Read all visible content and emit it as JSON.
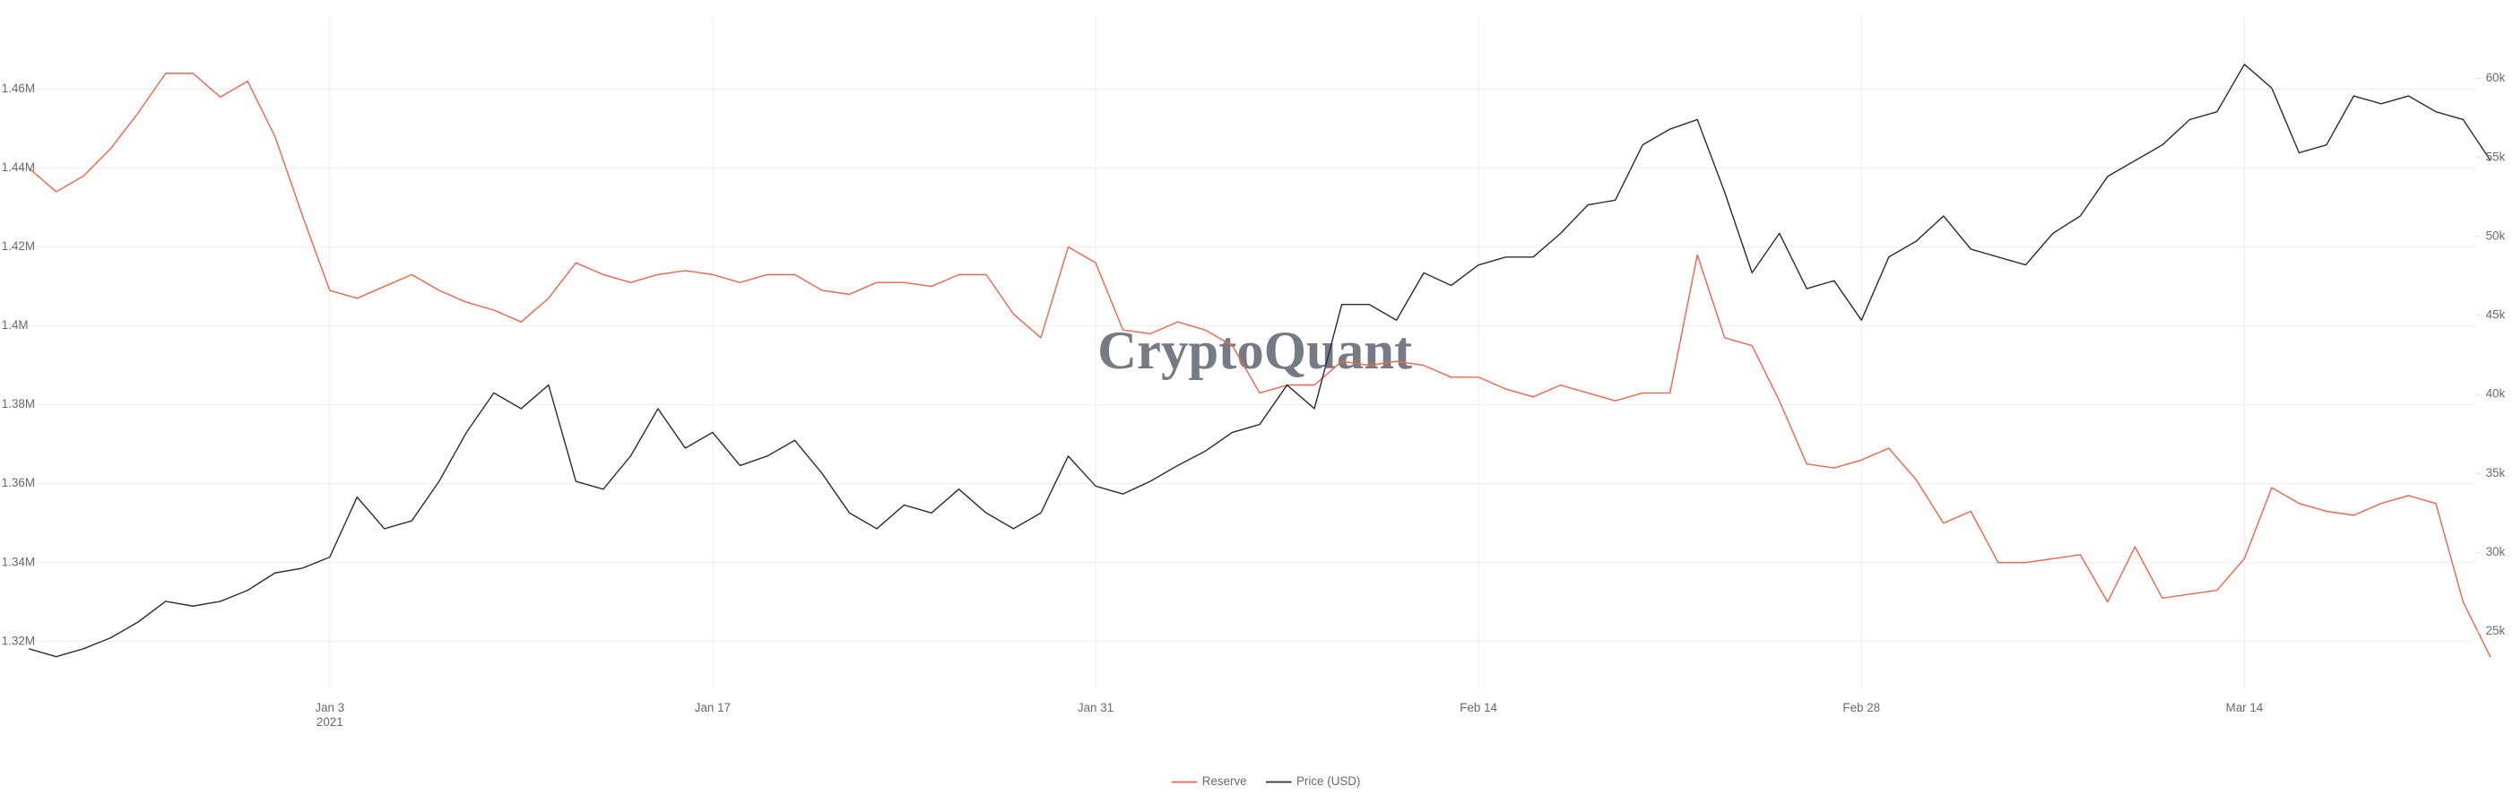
{
  "chart_data": {
    "type": "line",
    "watermark": "CryptoQuant",
    "x": [
      "2020-12-23",
      "2020-12-24",
      "2020-12-25",
      "2020-12-26",
      "2020-12-27",
      "2020-12-28",
      "2020-12-29",
      "2020-12-30",
      "2020-12-31",
      "2021-01-01",
      "2021-01-02",
      "2021-01-03",
      "2021-01-04",
      "2021-01-05",
      "2021-01-06",
      "2021-01-07",
      "2021-01-08",
      "2021-01-09",
      "2021-01-10",
      "2021-01-11",
      "2021-01-12",
      "2021-01-13",
      "2021-01-14",
      "2021-01-15",
      "2021-01-16",
      "2021-01-17",
      "2021-01-18",
      "2021-01-19",
      "2021-01-20",
      "2021-01-21",
      "2021-01-22",
      "2021-01-23",
      "2021-01-24",
      "2021-01-25",
      "2021-01-26",
      "2021-01-27",
      "2021-01-28",
      "2021-01-29",
      "2021-01-30",
      "2021-01-31",
      "2021-02-01",
      "2021-02-02",
      "2021-02-03",
      "2021-02-04",
      "2021-02-05",
      "2021-02-06",
      "2021-02-07",
      "2021-02-08",
      "2021-02-09",
      "2021-02-10",
      "2021-02-11",
      "2021-02-12",
      "2021-02-13",
      "2021-02-14",
      "2021-02-15",
      "2021-02-16",
      "2021-02-17",
      "2021-02-18",
      "2021-02-19",
      "2021-02-20",
      "2021-02-21",
      "2021-02-22",
      "2021-02-23",
      "2021-02-24",
      "2021-02-25",
      "2021-02-26",
      "2021-02-27",
      "2021-02-28",
      "2021-03-01",
      "2021-03-02",
      "2021-03-03",
      "2021-03-04",
      "2021-03-05",
      "2021-03-06",
      "2021-03-07",
      "2021-03-08",
      "2021-03-09",
      "2021-03-10",
      "2021-03-11",
      "2021-03-12",
      "2021-03-13",
      "2021-03-14",
      "2021-03-15",
      "2021-03-16",
      "2021-03-17",
      "2021-03-18",
      "2021-03-19",
      "2021-03-20",
      "2021-03-21",
      "2021-03-22",
      "2021-03-23"
    ],
    "series": [
      {
        "name": "Reserve",
        "color": "#f0654a",
        "axis": "y",
        "values": [
          1440000,
          1434000,
          1438000,
          1445000,
          1454000,
          1464000,
          1464000,
          1458000,
          1462000,
          1448000,
          1428000,
          1409000,
          1407000,
          1410000,
          1413000,
          1409000,
          1406000,
          1404000,
          1401000,
          1407000,
          1416000,
          1413000,
          1411000,
          1413000,
          1414000,
          1413000,
          1411000,
          1413000,
          1413000,
          1409000,
          1408000,
          1411000,
          1411000,
          1410000,
          1413000,
          1413000,
          1403000,
          1397000,
          1420000,
          1416000,
          1399000,
          1398000,
          1401000,
          1399000,
          1395000,
          1383000,
          1385000,
          1385000,
          1391000,
          1390000,
          1391000,
          1390000,
          1387000,
          1387000,
          1384000,
          1382000,
          1385000,
          1383000,
          1381000,
          1383000,
          1383000,
          1418000,
          1397000,
          1395000,
          1381000,
          1365000,
          1364000,
          1366000,
          1369000,
          1361000,
          1350000,
          1353000,
          1340000,
          1340000,
          1341000,
          1342000,
          1330000,
          1344000,
          1331000,
          1332000,
          1333000,
          1341000,
          1359000,
          1355000,
          1353000,
          1352000,
          1355000,
          1357000,
          1355000,
          1330000,
          1316000
        ]
      },
      {
        "name": "Price (USD)",
        "color": "#2b2f3a",
        "axis": "y2",
        "values": [
          23900,
          23400,
          23900,
          24600,
          25600,
          26900,
          26600,
          26900,
          27600,
          28700,
          29000,
          29700,
          33500,
          31500,
          32000,
          34500,
          37600,
          40100,
          39100,
          40600,
          34500,
          34000,
          36100,
          39100,
          36600,
          37600,
          35500,
          36100,
          37100,
          35000,
          32500,
          31500,
          33000,
          32500,
          34000,
          32500,
          31500,
          32500,
          36100,
          34200,
          33700,
          34500,
          35500,
          36400,
          37600,
          38100,
          40600,
          39100,
          45700,
          45700,
          44700,
          47700,
          46900,
          48200,
          48700,
          48700,
          50200,
          52000,
          52300,
          55800,
          56800,
          57400,
          52800,
          47700,
          50200,
          46700,
          47200,
          44700,
          48700,
          49700,
          51300,
          49200,
          48700,
          48200,
          50200,
          51300,
          53800,
          54800,
          55800,
          57400,
          57900,
          60900,
          59400,
          55300,
          55800,
          58900,
          58400,
          58900,
          57900,
          57400,
          54800
        ]
      }
    ],
    "xlim": [
      "2020-12-23",
      "2021-03-23"
    ],
    "xticks": [
      {
        "value": "2021-01-03",
        "label": "Jan 3"
      },
      {
        "value": "2021-01-17",
        "label": "Jan 17"
      },
      {
        "value": "2021-01-31",
        "label": "Jan 31"
      },
      {
        "value": "2021-02-14",
        "label": "Feb 14"
      },
      {
        "value": "2021-02-28",
        "label": "Feb 28"
      },
      {
        "value": "2021-03-14",
        "label": "Mar 14"
      }
    ],
    "x_year_label": "2021",
    "ylim": [
      1312000,
      1478500
    ],
    "yticks": [
      {
        "value": 1320000,
        "label": "1.32M"
      },
      {
        "value": 1340000,
        "label": "1.34M"
      },
      {
        "value": 1360000,
        "label": "1.36M"
      },
      {
        "value": 1380000,
        "label": "1.38M"
      },
      {
        "value": 1400000,
        "label": "1.4M"
      },
      {
        "value": 1420000,
        "label": "1.42M"
      },
      {
        "value": 1440000,
        "label": "1.44M"
      },
      {
        "value": 1460000,
        "label": "1.46M"
      }
    ],
    "y2lim": [
      22360,
      63950
    ],
    "y2ticks": [
      {
        "value": 25000,
        "label": "25k"
      },
      {
        "value": 30000,
        "label": "30k"
      },
      {
        "value": 35000,
        "label": "35k"
      },
      {
        "value": 40000,
        "label": "40k"
      },
      {
        "value": 45000,
        "label": "45k"
      },
      {
        "value": 50000,
        "label": "50k"
      },
      {
        "value": 55000,
        "label": "55k"
      },
      {
        "value": 60000,
        "label": "60k"
      }
    ],
    "grid": true,
    "legend": "bottom"
  }
}
